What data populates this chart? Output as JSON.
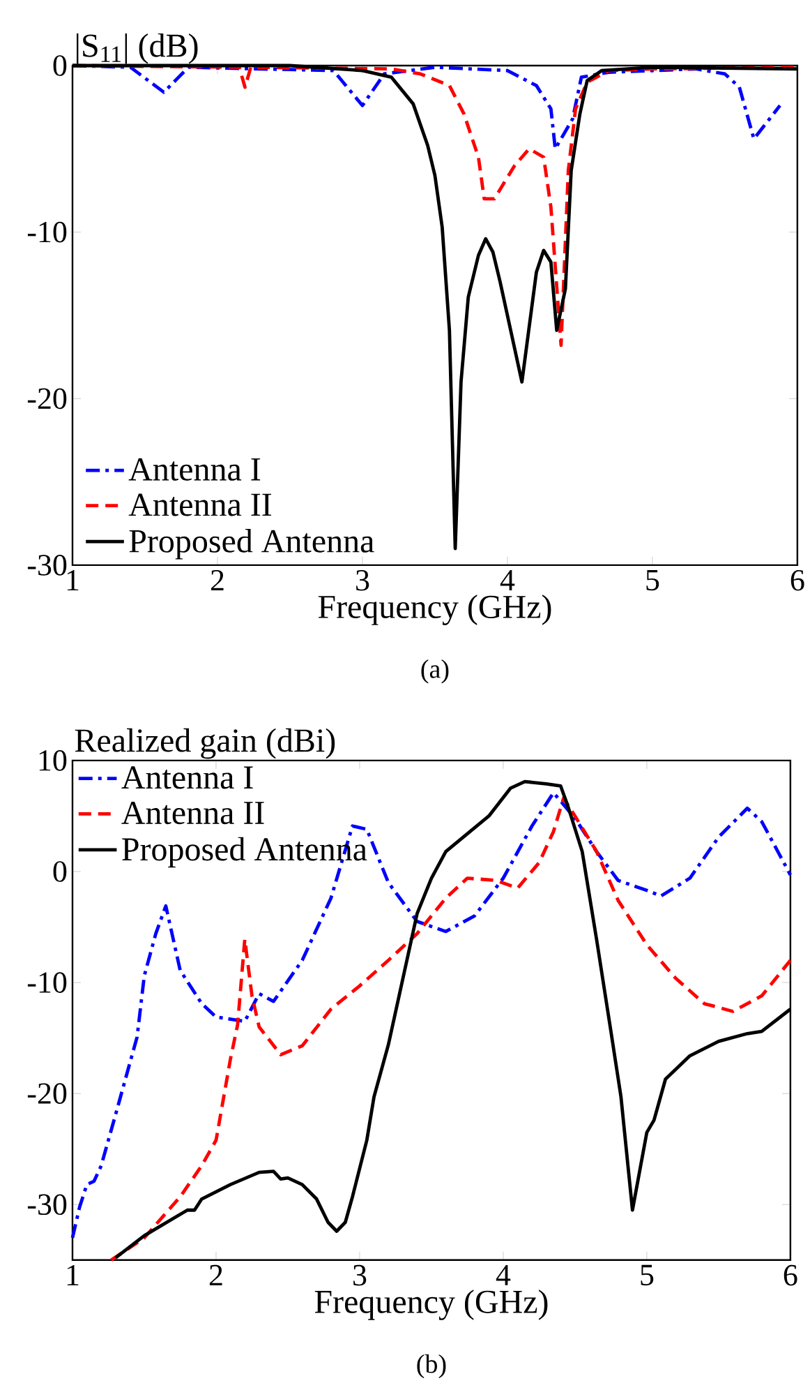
{
  "chart_data": [
    {
      "type": "line",
      "ylabel": "|S$_{11}$| (dB)",
      "xlabel": "Frequency (GHz)",
      "annotations": [
        "(a)"
      ],
      "xlim": [
        1,
        6
      ],
      "ylim": [
        -30,
        0
      ],
      "xticks": [
        1,
        2,
        3,
        4,
        5,
        6
      ],
      "yticks": [
        -30,
        -20,
        -10,
        0
      ],
      "legend": "bottom left",
      "series": [
        {
          "name": "Antenna I",
          "color": "#0000ff",
          "line_style": "dashdot",
          "x": [
            1.0,
            1.4,
            1.63,
            1.8,
            2.8,
            3.0,
            3.15,
            3.5,
            4.0,
            4.2,
            4.3,
            4.33,
            4.45,
            4.51,
            4.7,
            5.0,
            5.3,
            5.5,
            5.6,
            5.7,
            5.88
          ],
          "values": [
            0,
            -0.1,
            -1.6,
            -0.1,
            -0.3,
            -2.4,
            -0.5,
            -0.1,
            -0.3,
            -1.2,
            -2.6,
            -5.0,
            -3.2,
            -0.7,
            -0.4,
            -0.3,
            -0.2,
            -0.5,
            -1.3,
            -4.4,
            -2.4
          ]
        },
        {
          "name": "Antenna II",
          "color": "#ff0000",
          "line_style": "dashed",
          "x": [
            1.0,
            2.15,
            2.19,
            2.23,
            3.2,
            3.4,
            3.6,
            3.7,
            3.8,
            3.84,
            3.91,
            4.05,
            4.15,
            4.25,
            4.3,
            4.37,
            4.42,
            4.47,
            4.55,
            4.7,
            5.0,
            6.0
          ],
          "values": [
            0,
            -0.1,
            -1.3,
            -0.1,
            -0.2,
            -0.5,
            -1.2,
            -2.9,
            -5.5,
            -8.0,
            -8.0,
            -6.0,
            -5.0,
            -5.5,
            -8.5,
            -16.8,
            -6.3,
            -2.6,
            -1.0,
            -0.3,
            -0.2,
            -0.1
          ]
        },
        {
          "name": "Proposed Antenna",
          "color": "#000000",
          "line_style": "solid",
          "x": [
            1.0,
            2.5,
            3.0,
            3.2,
            3.35,
            3.45,
            3.5,
            3.55,
            3.6,
            3.64,
            3.68,
            3.73,
            3.8,
            3.85,
            3.9,
            3.95,
            4.1,
            4.2,
            4.25,
            4.3,
            4.34,
            4.4,
            4.44,
            4.5,
            4.55,
            4.65,
            5.0,
            6.0
          ],
          "values": [
            0,
            0,
            -0.3,
            -0.7,
            -2.3,
            -4.8,
            -6.6,
            -9.7,
            -15.9,
            -29.0,
            -19.0,
            -13.9,
            -11.4,
            -10.4,
            -11.2,
            -13.0,
            -19.0,
            -12.4,
            -11.1,
            -11.8,
            -15.9,
            -13.4,
            -6.3,
            -2.9,
            -0.9,
            -0.3,
            -0.1,
            -0.2
          ]
        }
      ]
    },
    {
      "type": "line",
      "ylabel": "Realized gain (dBi)",
      "xlabel": "Frequency (GHz)",
      "annotations": [
        "(b)"
      ],
      "xlim": [
        1,
        6
      ],
      "ylim": [
        -35,
        10
      ],
      "xticks": [
        1,
        2,
        3,
        4,
        5,
        6
      ],
      "yticks": [
        -30,
        -20,
        -10,
        0,
        10
      ],
      "legend": "top left",
      "series": [
        {
          "name": "Antenna I",
          "color": "#0000ff",
          "line_style": "dashdot",
          "x": [
            1.0,
            1.05,
            1.1,
            1.15,
            1.2,
            1.3,
            1.45,
            1.5,
            1.58,
            1.65,
            1.75,
            1.9,
            2.0,
            2.2,
            2.3,
            2.4,
            2.6,
            2.8,
            2.95,
            3.05,
            3.2,
            3.4,
            3.6,
            3.8,
            4.0,
            4.2,
            4.35,
            4.5,
            4.65,
            4.8,
            5.0,
            5.1,
            5.3,
            5.5,
            5.7,
            5.8,
            6.0
          ],
          "values": [
            -33,
            -30.2,
            -28.2,
            -27.9,
            -26.5,
            -21.9,
            -14.9,
            -9.4,
            -5.6,
            -3.1,
            -8.9,
            -11.9,
            -13.1,
            -13.5,
            -11.0,
            -11.7,
            -8.0,
            -2.4,
            4.1,
            3.8,
            -1.0,
            -4.5,
            -5.4,
            -4.0,
            -0.6,
            4.1,
            7.1,
            4.8,
            1.8,
            -0.8,
            -1.7,
            -2.2,
            -0.6,
            3.1,
            5.7,
            4.5,
            -0.3
          ]
        },
        {
          "name": "Antenna II",
          "color": "#ff0000",
          "line_style": "dashed",
          "x": [
            1.27,
            1.5,
            1.75,
            1.9,
            2.0,
            2.1,
            2.15,
            2.2,
            2.25,
            2.3,
            2.45,
            2.6,
            2.8,
            3.0,
            3.2,
            3.4,
            3.6,
            3.75,
            3.95,
            4.1,
            4.25,
            4.35,
            4.42,
            4.5,
            4.65,
            4.8,
            5.0,
            5.2,
            5.4,
            5.6,
            5.8,
            6.0
          ],
          "values": [
            -35,
            -33,
            -29.3,
            -26.5,
            -24.2,
            -16.9,
            -13.8,
            -6.1,
            -11.2,
            -14.0,
            -16.5,
            -15.7,
            -12.4,
            -10.3,
            -8.0,
            -5.6,
            -2.4,
            -0.6,
            -0.8,
            -1.5,
            0.8,
            3.6,
            6.6,
            5.0,
            1.8,
            -2.6,
            -6.6,
            -9.6,
            -11.9,
            -12.6,
            -11.2,
            -8.0
          ]
        },
        {
          "name": "Proposed Antenna",
          "color": "#000000",
          "line_style": "solid",
          "x": [
            1.3,
            1.5,
            1.8,
            1.85,
            1.9,
            2.1,
            2.3,
            2.4,
            2.45,
            2.5,
            2.6,
            2.7,
            2.78,
            2.84,
            2.9,
            2.95,
            3.05,
            3.1,
            3.2,
            3.4,
            3.5,
            3.6,
            3.75,
            3.9,
            4.05,
            4.15,
            4.3,
            4.4,
            4.45,
            4.55,
            4.65,
            4.75,
            4.82,
            4.9,
            4.95,
            5.0,
            5.05,
            5.13,
            5.3,
            5.5,
            5.7,
            5.8,
            6.0
          ],
          "values": [
            -34.8,
            -32.8,
            -30.5,
            -30.5,
            -29.5,
            -28.2,
            -27.1,
            -27.0,
            -27.7,
            -27.6,
            -28.2,
            -29.5,
            -31.6,
            -32.4,
            -31.6,
            -29.3,
            -24.2,
            -20.3,
            -15.6,
            -3.8,
            -0.6,
            1.8,
            3.4,
            5.0,
            7.5,
            8.1,
            7.9,
            7.7,
            5.9,
            1.8,
            -6.1,
            -14.4,
            -20.3,
            -30.5,
            -27.0,
            -23.5,
            -22.4,
            -18.7,
            -16.6,
            -15.3,
            -14.6,
            -14.4,
            -12.4
          ]
        }
      ]
    }
  ]
}
